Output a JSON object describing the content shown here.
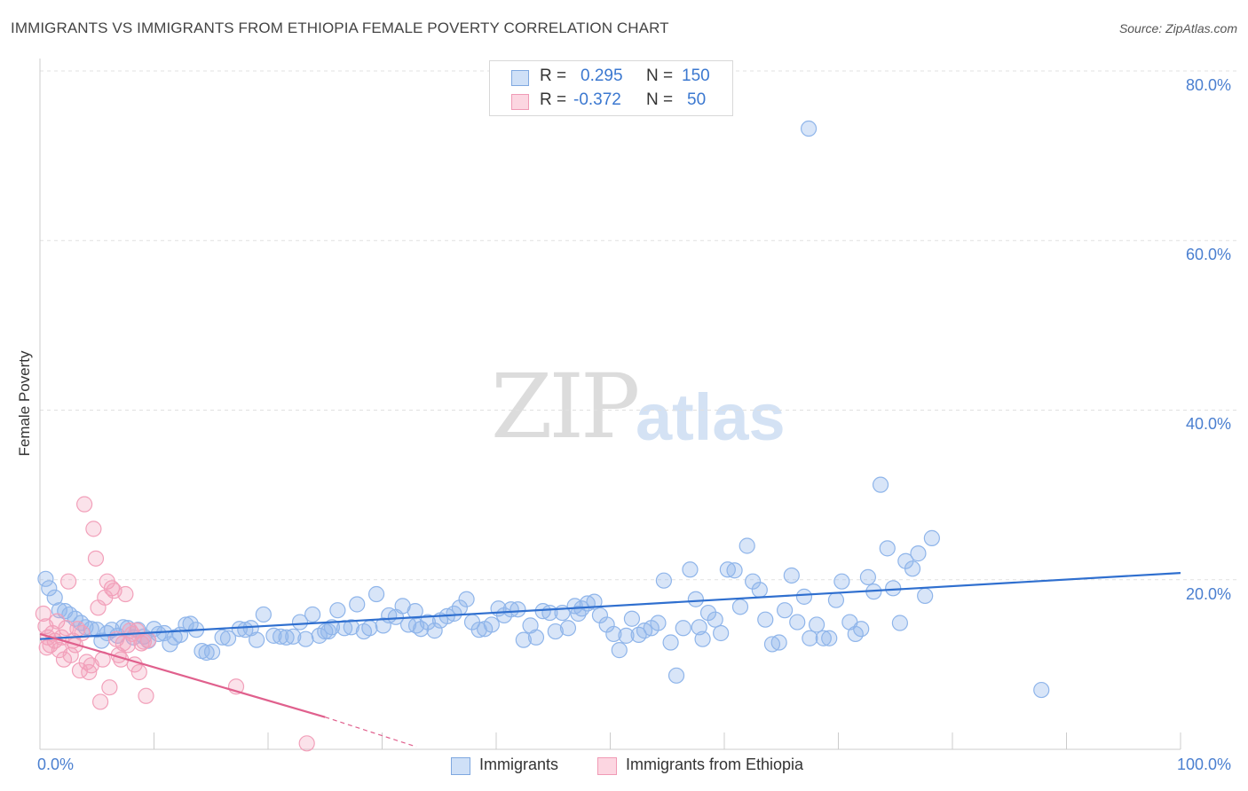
{
  "header": {
    "title": "IMMIGRANTS VS IMMIGRANTS FROM ETHIOPIA FEMALE POVERTY CORRELATION CHART",
    "source": "Source: ZipAtlas.com"
  },
  "watermark": {
    "zip": "ZIP",
    "atlas": "atlas"
  },
  "stats": {
    "rows": [
      {
        "r_label": "R =",
        "r_value": "0.295",
        "n_label": "N =",
        "n_value": "150",
        "color": "#a9c7ef"
      },
      {
        "r_label": "R =",
        "r_value": "-0.372",
        "n_label": "N =",
        "n_value": "50",
        "color": "#f6b6c8"
      }
    ]
  },
  "legend": {
    "items": [
      {
        "label": "Immigrants",
        "color": "#a9c7ef"
      },
      {
        "label": "Immigrants from Ethiopia",
        "color": "#f6b6c8"
      }
    ]
  },
  "colors": {
    "blue_point": "#8fb5ea",
    "blue_line": "#2f6fcf",
    "pink_point": "#f2a0ba",
    "pink_line": "#e0608d",
    "grid": "#e1e1e1",
    "axis_label": "#4a7fd0"
  },
  "chart_data": {
    "type": "scatter",
    "title": "IMMIGRANTS VS IMMIGRANTS FROM ETHIOPIA FEMALE POVERTY CORRELATION CHART",
    "xlabel": "",
    "ylabel": "Female Poverty",
    "xlim": [
      0,
      100
    ],
    "ylim": [
      0,
      80
    ],
    "x_tick_labels": [
      "0.0%",
      "100.0%"
    ],
    "y_tick_labels": [
      "20.0%",
      "40.0%",
      "60.0%",
      "80.0%"
    ],
    "y_ticks": [
      20,
      40,
      60,
      80
    ],
    "grid": true,
    "legend_position": "bottom",
    "series": [
      {
        "name": "Immigrants",
        "r": 0.295,
        "n": 150,
        "trend": {
          "x": [
            0,
            100
          ],
          "y": [
            13.0,
            20.8
          ]
        },
        "points": [
          [
            0.5,
            20.1
          ],
          [
            0.8,
            19.0
          ],
          [
            1.3,
            17.9
          ],
          [
            1.7,
            16.4
          ],
          [
            2.2,
            16.3
          ],
          [
            2.6,
            15.9
          ],
          [
            3.1,
            15.4
          ],
          [
            3.6,
            14.9
          ],
          [
            4.0,
            14.4
          ],
          [
            4.5,
            14.2
          ],
          [
            5.0,
            14.1
          ],
          [
            5.4,
            12.8
          ],
          [
            5.9,
            13.7
          ],
          [
            6.3,
            14.1
          ],
          [
            6.8,
            13.4
          ],
          [
            7.3,
            14.4
          ],
          [
            7.7,
            14.3
          ],
          [
            8.2,
            13.2
          ],
          [
            8.6,
            14.1
          ],
          [
            9.1,
            13.3
          ],
          [
            9.5,
            12.8
          ],
          [
            10.0,
            14.2
          ],
          [
            10.4,
            13.6
          ],
          [
            10.9,
            13.7
          ],
          [
            11.4,
            12.4
          ],
          [
            11.8,
            13.2
          ],
          [
            12.3,
            13.5
          ],
          [
            12.8,
            14.7
          ],
          [
            13.2,
            14.8
          ],
          [
            13.7,
            14.1
          ],
          [
            14.2,
            11.6
          ],
          [
            14.6,
            11.4
          ],
          [
            15.1,
            11.5
          ],
          [
            16.0,
            13.2
          ],
          [
            16.5,
            13.1
          ],
          [
            17.5,
            14.2
          ],
          [
            18.0,
            14.1
          ],
          [
            18.5,
            14.3
          ],
          [
            19.0,
            12.9
          ],
          [
            19.6,
            15.9
          ],
          [
            20.5,
            13.4
          ],
          [
            21.1,
            13.3
          ],
          [
            21.6,
            13.2
          ],
          [
            22.2,
            13.3
          ],
          [
            22.8,
            15.0
          ],
          [
            23.3,
            13.0
          ],
          [
            23.9,
            15.9
          ],
          [
            24.5,
            13.4
          ],
          [
            25.0,
            13.9
          ],
          [
            25.6,
            14.4
          ],
          [
            26.1,
            16.4
          ],
          [
            26.7,
            14.3
          ],
          [
            27.3,
            14.4
          ],
          [
            27.8,
            17.1
          ],
          [
            28.4,
            13.9
          ],
          [
            28.9,
            14.3
          ],
          [
            29.5,
            18.3
          ],
          [
            30.1,
            14.6
          ],
          [
            30.6,
            15.8
          ],
          [
            31.2,
            15.6
          ],
          [
            31.8,
            16.9
          ],
          [
            32.3,
            14.7
          ],
          [
            32.9,
            16.3
          ],
          [
            33.4,
            14.2
          ],
          [
            34.0,
            15.0
          ],
          [
            34.6,
            14.0
          ],
          [
            35.1,
            15.2
          ],
          [
            35.7,
            15.7
          ],
          [
            36.3,
            16.0
          ],
          [
            36.8,
            16.7
          ],
          [
            37.4,
            17.7
          ],
          [
            37.9,
            15.0
          ],
          [
            38.5,
            14.1
          ],
          [
            39.0,
            14.2
          ],
          [
            39.6,
            14.7
          ],
          [
            40.2,
            16.6
          ],
          [
            40.7,
            15.8
          ],
          [
            41.3,
            16.5
          ],
          [
            41.9,
            16.5
          ],
          [
            42.4,
            12.9
          ],
          [
            43.0,
            14.6
          ],
          [
            43.5,
            13.2
          ],
          [
            44.1,
            16.3
          ],
          [
            44.7,
            16.1
          ],
          [
            45.2,
            13.9
          ],
          [
            45.8,
            16.1
          ],
          [
            46.3,
            14.3
          ],
          [
            46.9,
            16.9
          ],
          [
            47.5,
            16.6
          ],
          [
            48.0,
            17.2
          ],
          [
            48.6,
            17.4
          ],
          [
            49.1,
            15.8
          ],
          [
            49.7,
            14.7
          ],
          [
            50.3,
            13.6
          ],
          [
            50.8,
            11.7
          ],
          [
            51.4,
            13.4
          ],
          [
            51.9,
            15.4
          ],
          [
            52.5,
            13.5
          ],
          [
            53.0,
            14.0
          ],
          [
            53.6,
            14.3
          ],
          [
            54.2,
            14.9
          ],
          [
            54.7,
            19.9
          ],
          [
            55.3,
            12.6
          ],
          [
            55.8,
            8.7
          ],
          [
            56.4,
            14.3
          ],
          [
            57.0,
            21.2
          ],
          [
            57.5,
            17.7
          ],
          [
            58.1,
            13.0
          ],
          [
            58.6,
            16.1
          ],
          [
            59.2,
            15.3
          ],
          [
            59.7,
            13.7
          ],
          [
            60.3,
            21.2
          ],
          [
            60.9,
            21.1
          ],
          [
            61.4,
            16.8
          ],
          [
            62.0,
            24.0
          ],
          [
            62.5,
            19.8
          ],
          [
            63.1,
            18.8
          ],
          [
            63.6,
            15.3
          ],
          [
            64.2,
            12.4
          ],
          [
            64.8,
            12.6
          ],
          [
            65.3,
            16.4
          ],
          [
            65.9,
            20.5
          ],
          [
            66.4,
            15.0
          ],
          [
            67.0,
            18.0
          ],
          [
            67.5,
            13.1
          ],
          [
            68.1,
            14.7
          ],
          [
            68.7,
            13.1
          ],
          [
            69.2,
            13.1
          ],
          [
            69.8,
            17.6
          ],
          [
            70.3,
            19.8
          ],
          [
            67.4,
            73.2
          ],
          [
            71.0,
            15.0
          ],
          [
            71.5,
            13.6
          ],
          [
            72.0,
            14.2
          ],
          [
            72.6,
            20.3
          ],
          [
            73.1,
            18.6
          ],
          [
            73.7,
            31.2
          ],
          [
            74.3,
            23.7
          ],
          [
            74.8,
            19.0
          ],
          [
            75.4,
            14.9
          ],
          [
            75.9,
            22.2
          ],
          [
            76.5,
            21.3
          ],
          [
            77.0,
            23.1
          ],
          [
            77.6,
            18.1
          ],
          [
            78.2,
            24.9
          ],
          [
            87.8,
            7.0
          ],
          [
            47.2,
            16.0
          ],
          [
            33.0,
            14.6
          ],
          [
            25.3,
            13.9
          ],
          [
            57.8,
            14.4
          ]
        ]
      },
      {
        "name": "Immigrants from Ethiopia",
        "r": -0.372,
        "n": 50,
        "trend": {
          "x": [
            0,
            25
          ],
          "y": [
            13.6,
            3.8
          ]
        },
        "trend_dashed": {
          "x": [
            25,
            33
          ],
          "y": [
            3.8,
            0.3
          ]
        },
        "points": [
          [
            0.3,
            16.0
          ],
          [
            0.5,
            14.5
          ],
          [
            0.7,
            13.2
          ],
          [
            0.9,
            12.3
          ],
          [
            1.1,
            13.7
          ],
          [
            1.3,
            12.8
          ],
          [
            1.5,
            15.1
          ],
          [
            1.7,
            11.7
          ],
          [
            1.9,
            13.2
          ],
          [
            2.1,
            10.6
          ],
          [
            2.3,
            14.3
          ],
          [
            2.5,
            19.8
          ],
          [
            2.7,
            11.1
          ],
          [
            2.9,
            12.8
          ],
          [
            3.1,
            12.3
          ],
          [
            3.3,
            14.2
          ],
          [
            3.5,
            9.3
          ],
          [
            3.7,
            13.7
          ],
          [
            3.9,
            28.9
          ],
          [
            4.1,
            10.3
          ],
          [
            4.3,
            9.1
          ],
          [
            4.5,
            9.9
          ],
          [
            4.7,
            26.0
          ],
          [
            4.9,
            22.5
          ],
          [
            5.1,
            16.7
          ],
          [
            5.3,
            5.6
          ],
          [
            5.5,
            10.6
          ],
          [
            5.7,
            17.9
          ],
          [
            5.9,
            19.8
          ],
          [
            6.1,
            7.3
          ],
          [
            6.3,
            19.0
          ],
          [
            6.5,
            18.7
          ],
          [
            6.7,
            13.0
          ],
          [
            6.9,
            11.1
          ],
          [
            7.1,
            10.6
          ],
          [
            7.3,
            12.5
          ],
          [
            7.5,
            18.3
          ],
          [
            7.7,
            12.3
          ],
          [
            7.9,
            14.0
          ],
          [
            8.1,
            13.6
          ],
          [
            8.3,
            10.0
          ],
          [
            8.5,
            14.0
          ],
          [
            8.7,
            9.1
          ],
          [
            8.9,
            12.5
          ],
          [
            9.1,
            12.7
          ],
          [
            9.3,
            6.3
          ],
          [
            9.5,
            12.9
          ],
          [
            0.6,
            12.0
          ],
          [
            17.2,
            7.4
          ],
          [
            23.4,
            0.7
          ]
        ]
      }
    ]
  }
}
